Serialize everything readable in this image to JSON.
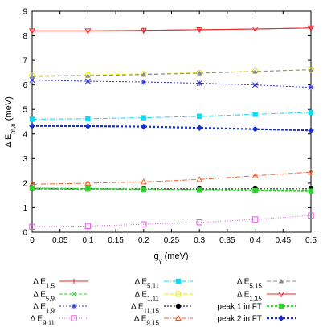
{
  "chart_data": {
    "type": "line",
    "x": [
      0,
      0.1,
      0.2,
      0.3,
      0.4,
      0.5
    ],
    "xlim": [
      0,
      0.5
    ],
    "ylim": [
      0,
      9
    ],
    "xticks": [
      "0",
      "0.05",
      "0.1",
      "0.15",
      "0.2",
      "0.25",
      "0.3",
      "0.35",
      "0.4",
      "0.45",
      "0.5"
    ],
    "yticks": [
      "0",
      "1",
      "2",
      "3",
      "4",
      "5",
      "6",
      "7",
      "8",
      "9"
    ],
    "xlabel": {
      "base": "g",
      "sub": "γ",
      "unit": " (meV)"
    },
    "ylabel": {
      "base": "Δ E",
      "sub": "m,n",
      "unit": " (meV)"
    },
    "grid": false,
    "legend_position": "bottom",
    "series": [
      {
        "label": "Δ E",
        "sub": "1,5",
        "color": "#e8262a",
        "marker": "plus",
        "dash": "solid",
        "values": [
          8.2,
          8.2,
          8.22,
          8.25,
          8.28,
          8.32
        ]
      },
      {
        "label": "Δ E",
        "sub": "5,9",
        "color": "#2fd22f",
        "marker": "x",
        "dash": "4,2",
        "values": [
          1.8,
          1.78,
          1.76,
          1.74,
          1.72,
          1.7
        ]
      },
      {
        "label": "Δ E",
        "sub": "1,9",
        "color": "#3636d4",
        "marker": "star",
        "dash": "2,2",
        "values": [
          6.2,
          6.15,
          6.12,
          6.07,
          6.0,
          5.9
        ]
      },
      {
        "label": "Δ E",
        "sub": "9,11",
        "color": "#e05ae0",
        "marker": "square-open",
        "dash": "1,2",
        "values": [
          0.22,
          0.25,
          0.32,
          0.4,
          0.52,
          0.68
        ]
      },
      {
        "label": "Δ E",
        "sub": "5,11",
        "color": "#10d8f0",
        "marker": "square-filled",
        "dash": "6,2,1,2",
        "values": [
          4.6,
          4.62,
          4.66,
          4.72,
          4.8,
          4.88
        ]
      },
      {
        "label": "Δ E",
        "sub": "1,11",
        "color": "#e8e800",
        "marker": "circle-open",
        "dash": "5,3",
        "values": [
          6.38,
          6.4,
          6.45,
          6.5,
          6.56,
          6.62
        ]
      },
      {
        "label": "Δ E",
        "sub": "11,15",
        "color": "#000000",
        "marker": "circle-filled",
        "dash": "2,2",
        "values": [
          1.77,
          1.77,
          1.77,
          1.77,
          1.77,
          1.77
        ]
      },
      {
        "label": "Δ E",
        "sub": "9,15",
        "color": "#f06030",
        "marker": "triangle-open",
        "dash": "6,2,1,2",
        "values": [
          1.95,
          2.0,
          2.05,
          2.15,
          2.3,
          2.45
        ]
      },
      {
        "label": "Δ E",
        "sub": "5,15",
        "color": "#888888",
        "marker": "triangle-filled",
        "dash": "5,3",
        "values": [
          6.35,
          6.38,
          6.42,
          6.48,
          6.55,
          6.62
        ]
      },
      {
        "label": "Δ E",
        "sub": "1,15",
        "color": "#e8262a",
        "marker": "triangle-down-open",
        "dash": "solid",
        "values": [
          8.2,
          8.2,
          8.22,
          8.25,
          8.28,
          8.32
        ]
      },
      {
        "label": "peak 1 in FT",
        "sub": "",
        "color": "#2fd22f",
        "marker": "square-filled",
        "dash": "3,2",
        "width": 2.2,
        "values": [
          1.78,
          1.76,
          1.74,
          1.72,
          1.7,
          1.68
        ]
      },
      {
        "label": "peak 2 in FT",
        "sub": "",
        "color": "#1830c8",
        "marker": "diamond-filled",
        "dash": "3,2",
        "width": 2.2,
        "values": [
          4.33,
          4.32,
          4.3,
          4.25,
          4.2,
          4.15
        ]
      }
    ]
  }
}
